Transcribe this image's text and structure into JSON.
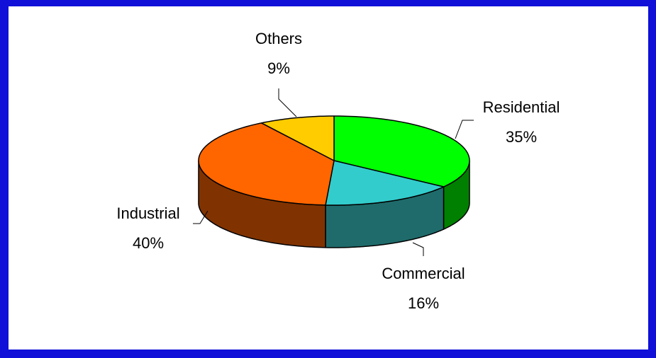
{
  "chart_data": {
    "type": "pie",
    "categories": [
      "Residential",
      "Commercial",
      "Industrial",
      "Others"
    ],
    "values": [
      35,
      16,
      40,
      9
    ],
    "value_labels": [
      "35%",
      "16%",
      "40%",
      "9%"
    ],
    "colors": [
      "#00ff00",
      "#33cccc",
      "#ff6600",
      "#ffcc00"
    ],
    "side_colors": [
      "#008000",
      "#1f6b6b",
      "#803300",
      "#806600"
    ]
  }
}
